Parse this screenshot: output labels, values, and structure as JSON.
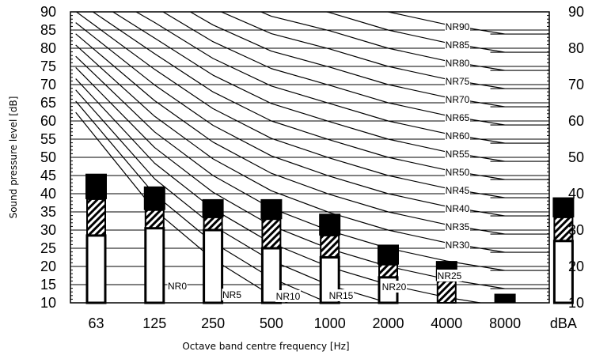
{
  "chart_data": {
    "type": "bar",
    "ylabel": "Sound pressure level [dB]",
    "xlabel": "Octave band centre frequency [Hz]",
    "ylim": [
      10,
      90
    ],
    "yticks": [
      "10",
      "15",
      "20",
      "25",
      "30",
      "35",
      "40",
      "45",
      "50",
      "55",
      "60",
      "65",
      "70",
      "75",
      "80",
      "85",
      "90"
    ],
    "categories": [
      "63",
      "125",
      "250",
      "500",
      "1000",
      "2000",
      "4000",
      "8000",
      "dBA"
    ],
    "grid": "horizontal",
    "bars": [
      {
        "category": "63",
        "low": 28.5,
        "mid": 38.5,
        "top": 45.5
      },
      {
        "category": "125",
        "low": 30.5,
        "mid": 35.5,
        "top": 42
      },
      {
        "category": "250",
        "low": 30,
        "mid": 33.5,
        "top": 38.5
      },
      {
        "category": "500",
        "low": 25,
        "mid": 33,
        "top": 38.5
      },
      {
        "category": "1000",
        "low": 22.5,
        "mid": 28.5,
        "top": 34.5
      },
      {
        "category": "2000",
        "low": 17,
        "mid": 20.5,
        "top": 26
      },
      {
        "category": "4000",
        "low": 10,
        "mid": 16,
        "top": 21.5
      },
      {
        "category": "8000",
        "low": 10,
        "mid": 10,
        "top": 12.5
      },
      {
        "category": "dBA",
        "low": 27,
        "mid": 33.5,
        "top": 39
      }
    ],
    "nr_curves": [
      {
        "name": "NR0",
        "values": [
          55.4,
          35.5,
          22.0,
          12.0,
          4.8,
          0.0,
          -3.5,
          -6.1
        ]
      },
      {
        "name": "NR5",
        "values": [
          58.8,
          39.8,
          26.6,
          16.8,
          9.8,
          5.0,
          1.5,
          -1.1
        ]
      },
      {
        "name": "NR10",
        "values": [
          62.2,
          44.1,
          31.2,
          21.6,
          14.8,
          10.0,
          6.5,
          3.9
        ]
      },
      {
        "name": "NR15",
        "values": [
          65.6,
          48.4,
          35.8,
          26.4,
          19.8,
          15.0,
          11.5,
          8.9
        ]
      },
      {
        "name": "NR20",
        "values": [
          69.0,
          52.7,
          40.4,
          31.2,
          24.8,
          20.0,
          16.5,
          13.9
        ]
      },
      {
        "name": "NR25",
        "values": [
          72.4,
          57.0,
          45.0,
          36.0,
          29.8,
          25.0,
          21.5,
          18.9
        ]
      },
      {
        "name": "NR30",
        "values": [
          75.8,
          61.3,
          49.6,
          40.8,
          34.8,
          30.0,
          26.5,
          23.9
        ]
      },
      {
        "name": "NR35",
        "values": [
          79.2,
          65.6,
          54.2,
          45.6,
          39.8,
          35.0,
          31.5,
          28.9
        ]
      },
      {
        "name": "NR40",
        "values": [
          82.6,
          69.9,
          58.8,
          50.4,
          44.8,
          40.0,
          36.5,
          33.9
        ]
      },
      {
        "name": "NR45",
        "values": [
          86.0,
          74.2,
          63.4,
          55.2,
          49.8,
          45.0,
          41.5,
          38.9
        ]
      },
      {
        "name": "NR50",
        "values": [
          89.4,
          78.5,
          68.0,
          60.0,
          54.8,
          50.0,
          46.5,
          43.9
        ]
      },
      {
        "name": "NR55",
        "values": [
          92.9,
          82.8,
          72.6,
          64.8,
          59.8,
          55.0,
          51.5,
          48.9
        ]
      },
      {
        "name": "NR60",
        "values": [
          96.3,
          87.1,
          77.2,
          69.6,
          64.8,
          60.0,
          56.5,
          53.9
        ]
      },
      {
        "name": "NR65",
        "values": [
          99.7,
          91.4,
          81.8,
          74.4,
          69.8,
          65.0,
          61.5,
          58.9
        ]
      },
      {
        "name": "NR70",
        "values": [
          103.1,
          95.7,
          86.4,
          79.2,
          74.8,
          70.0,
          66.5,
          63.9
        ]
      },
      {
        "name": "NR75",
        "values": [
          106.5,
          100.0,
          91.0,
          84.0,
          79.8,
          75.0,
          71.5,
          68.9
        ]
      },
      {
        "name": "NR80",
        "values": [
          109.9,
          104.3,
          95.6,
          88.8,
          84.8,
          80.0,
          76.5,
          73.9
        ]
      },
      {
        "name": "NR85",
        "values": [
          113.3,
          108.6,
          100.2,
          93.6,
          89.8,
          85.0,
          81.5,
          78.9
        ]
      },
      {
        "name": "NR90",
        "values": [
          116.7,
          112.9,
          104.8,
          98.4,
          94.8,
          90.0,
          86.5,
          83.9
        ]
      }
    ]
  }
}
